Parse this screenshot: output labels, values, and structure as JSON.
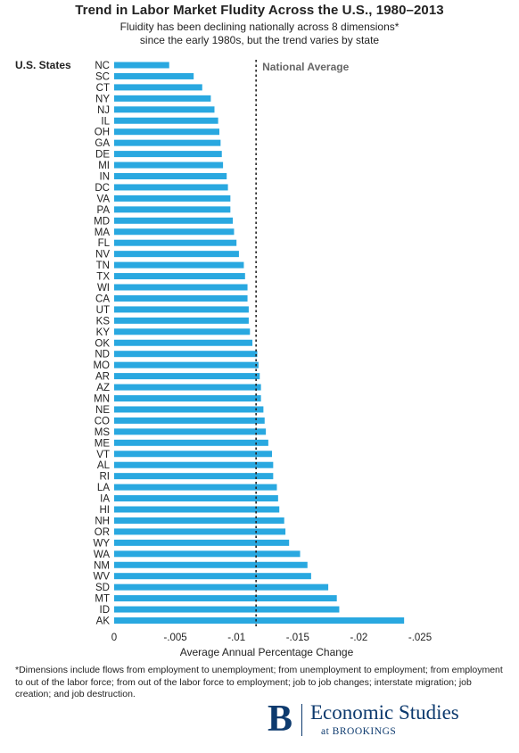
{
  "title": "Trend in Labor Market Fludity Across the U.S., 1980–2013",
  "subtitle_line1": "Fluidity has been declining nationally across 8 dimensions*",
  "subtitle_line2": "since the early 1980s, but the trend varies by state",
  "footnote": "*Dimensions include flows from employment to unemployment; from unemployment to employment; from employment to out of the labor force; from out of the labor force to employment; job to job changes; interstate migration; job creation; and job destruction.",
  "logo": {
    "mark": "B",
    "main": "Economic Studies",
    "sub": "at BROOKINGS"
  },
  "colors": {
    "bar": "#29a8e0",
    "reference_line": "#222222"
  },
  "chart_data": {
    "type": "bar",
    "orientation": "horizontal",
    "y_axis_label": "U.S. States",
    "xlabel": "Average Annual Percentage Change",
    "x_tick_labels": [
      "0",
      "-.005",
      "-.01",
      "-.015",
      "-.02",
      "-.025"
    ],
    "x_ticks": [
      0,
      -0.005,
      -0.01,
      -0.015,
      -0.02,
      -0.025
    ],
    "xlim": [
      0,
      -0.025
    ],
    "grid": false,
    "reference_line": {
      "label": "National Average",
      "value": -0.0116
    },
    "categories": [
      "NC",
      "SC",
      "CT",
      "NY",
      "NJ",
      "IL",
      "OH",
      "GA",
      "DE",
      "MI",
      "IN",
      "DC",
      "VA",
      "PA",
      "MD",
      "MA",
      "FL",
      "NV",
      "TN",
      "TX",
      "WI",
      "CA",
      "UT",
      "KS",
      "KY",
      "OK",
      "ND",
      "MO",
      "AR",
      "AZ",
      "MN",
      "NE",
      "CO",
      "MS",
      "ME",
      "VT",
      "AL",
      "RI",
      "LA",
      "IA",
      "HI",
      "NH",
      "OR",
      "WY",
      "WA",
      "NM",
      "WV",
      "SD",
      "MT",
      "ID",
      "AK"
    ],
    "values": [
      -0.0045,
      -0.0065,
      -0.0072,
      -0.0079,
      -0.0082,
      -0.0085,
      -0.0086,
      -0.0087,
      -0.0088,
      -0.0089,
      -0.0092,
      -0.0093,
      -0.0095,
      -0.0095,
      -0.0097,
      -0.0098,
      -0.01,
      -0.0102,
      -0.0106,
      -0.0107,
      -0.0109,
      -0.0109,
      -0.011,
      -0.011,
      -0.0111,
      -0.0113,
      -0.0117,
      -0.0118,
      -0.0119,
      -0.012,
      -0.012,
      -0.0122,
      -0.0123,
      -0.0124,
      -0.0126,
      -0.0129,
      -0.013,
      -0.013,
      -0.0133,
      -0.0134,
      -0.0135,
      -0.0139,
      -0.014,
      -0.0143,
      -0.0152,
      -0.0158,
      -0.0161,
      -0.0175,
      -0.0182,
      -0.0184,
      -0.0237
    ]
  }
}
